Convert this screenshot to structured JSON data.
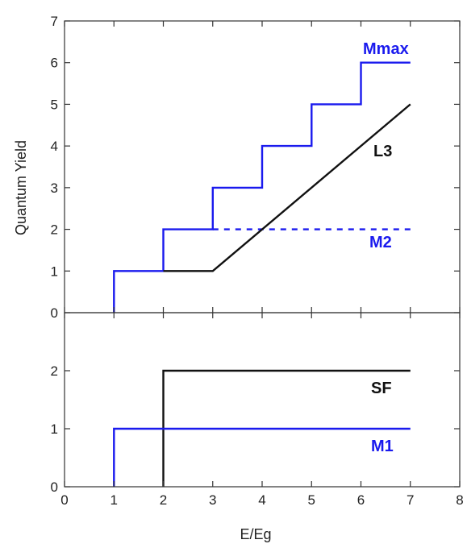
{
  "colors": {
    "blue": "#1a1aee",
    "black": "#111111",
    "axis": "#333333"
  },
  "chart_data": [
    {
      "type": "line",
      "ylabel": "Quantum Yield",
      "xlim": [
        0,
        8
      ],
      "ylim": [
        0,
        7
      ],
      "xticks": [
        0,
        1,
        2,
        3,
        4,
        5,
        6,
        7,
        8
      ],
      "yticks": [
        0,
        1,
        2,
        3,
        4,
        5,
        6,
        7
      ],
      "grid": false,
      "series": [
        {
          "name": "Mmax",
          "color": "#1a1aee",
          "dash": false,
          "points": [
            [
              1,
              0
            ],
            [
              1,
              1
            ],
            [
              2,
              1
            ],
            [
              2,
              2
            ],
            [
              3,
              2
            ],
            [
              3,
              3
            ],
            [
              4,
              3
            ],
            [
              4,
              4
            ],
            [
              5,
              4
            ],
            [
              5,
              5
            ],
            [
              6,
              5
            ],
            [
              6,
              6
            ],
            [
              7,
              6
            ]
          ]
        },
        {
          "name": "M2",
          "color": "#1a1aee",
          "dash": true,
          "points": [
            [
              3,
              2
            ],
            [
              7,
              2
            ]
          ]
        },
        {
          "name": "L3",
          "color": "#111111",
          "dash": false,
          "points": [
            [
              2,
              1
            ],
            [
              3,
              1
            ],
            [
              7,
              5
            ]
          ]
        }
      ]
    },
    {
      "type": "line",
      "xlabel": "E/Eg",
      "xlim": [
        0,
        8
      ],
      "ylim": [
        0,
        3
      ],
      "xticks": [
        0,
        1,
        2,
        3,
        4,
        5,
        6,
        7,
        8
      ],
      "yticks": [
        0,
        1,
        2
      ],
      "grid": false,
      "series": [
        {
          "name": "SF",
          "color": "#111111",
          "dash": false,
          "points": [
            [
              2,
              0
            ],
            [
              2,
              2
            ],
            [
              7,
              2
            ]
          ]
        },
        {
          "name": "M1",
          "color": "#1a1aee",
          "dash": false,
          "points": [
            [
              1,
              0
            ],
            [
              1,
              1
            ],
            [
              7,
              1
            ]
          ]
        }
      ]
    }
  ]
}
